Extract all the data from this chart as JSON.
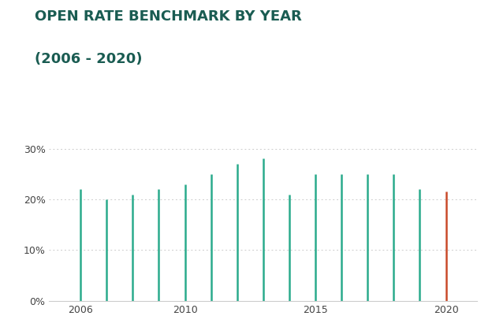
{
  "years": [
    2006,
    2007,
    2008,
    2009,
    2010,
    2011,
    2012,
    2013,
    2014,
    2015,
    2016,
    2017,
    2018,
    2019,
    2020
  ],
  "values": [
    0.22,
    0.2,
    0.21,
    0.22,
    0.23,
    0.25,
    0.27,
    0.28,
    0.21,
    0.25,
    0.25,
    0.25,
    0.25,
    0.22,
    0.215
  ],
  "line_colors": [
    "#2aab8c",
    "#2aab8c",
    "#2aab8c",
    "#2aab8c",
    "#2aab8c",
    "#2aab8c",
    "#2aab8c",
    "#2aab8c",
    "#2aab8c",
    "#2aab8c",
    "#2aab8c",
    "#2aab8c",
    "#2aab8c",
    "#2aab8c",
    "#c94a2a"
  ],
  "title_line1": "OPEN RATE BENCHMARK BY YEAR",
  "title_line2": "(2006 - 2020)",
  "title_color": "#1a5c52",
  "title_fontsize": 13,
  "background_color": "#ffffff",
  "yticks": [
    0.0,
    0.1,
    0.2,
    0.3
  ],
  "ylim": [
    0,
    0.335
  ],
  "xlim": [
    2004.8,
    2021.2
  ],
  "xticks": [
    2006,
    2010,
    2015,
    2020
  ],
  "grid_color": "#cccccc",
  "axis_label_color": "#444444",
  "tick_label_fontsize": 9,
  "line_width": 1.8
}
